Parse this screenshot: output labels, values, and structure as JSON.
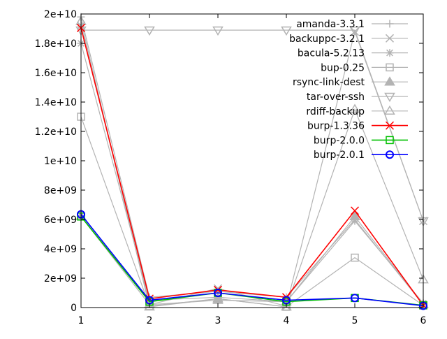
{
  "chart_data": {
    "type": "line",
    "title": "",
    "xlabel": "",
    "ylabel": "",
    "x": [
      1,
      2,
      3,
      4,
      5,
      6
    ],
    "xlim": [
      1,
      6
    ],
    "ylim": [
      0,
      20000000000
    ],
    "xticks": [
      1,
      2,
      3,
      4,
      5,
      6
    ],
    "xtick_labels": [
      "1",
      "2",
      "3",
      "4",
      "5",
      "6"
    ],
    "yticks": [
      0,
      2000000000,
      4000000000,
      6000000000,
      8000000000,
      10000000000,
      12000000000,
      14000000000,
      16000000000,
      18000000000,
      20000000000
    ],
    "ytick_labels": [
      "0",
      "2e+09",
      "4e+09",
      "6e+09",
      "8e+09",
      "1e+10",
      "1.2e+10",
      "1.4e+10",
      "1.6e+10",
      "1.8e+10",
      "2e+10"
    ],
    "grid": false,
    "legend_position": "top-right",
    "series": [
      {
        "name": "amanda-3.3.1",
        "marker": "plus",
        "color": "#b3b3b3",
        "values": [
          19800000000,
          700000000,
          1100000000,
          700000000,
          6000000000,
          200000000
        ]
      },
      {
        "name": "backuppc-3.2.1",
        "marker": "cross",
        "color": "#b3b3b3",
        "values": [
          19200000000,
          200000000,
          1300000000,
          100000000,
          18800000000,
          5900000000
        ]
      },
      {
        "name": "bacula-5.2.13",
        "marker": "asterisk",
        "color": "#b3b3b3",
        "values": [
          18000000000,
          500000000,
          700000000,
          400000000,
          5900000000,
          300000000
        ]
      },
      {
        "name": "bup-0.25",
        "marker": "square",
        "color": "#b3b3b3",
        "values": [
          13000000000,
          100000000,
          600000000,
          50000000,
          3400000000,
          150000000
        ]
      },
      {
        "name": "rsync-link-dest",
        "marker": "triangle-filled",
        "color": "#b3b3b3",
        "values": [
          6200000000,
          200000000,
          500000000,
          400000000,
          6200000000,
          200000000
        ]
      },
      {
        "name": "tar-over-ssh",
        "marker": "triangle-down",
        "color": "#b3b3b3",
        "values": [
          18900000000,
          18900000000,
          18900000000,
          18900000000,
          18900000000,
          5900000000
        ]
      },
      {
        "name": "rdiff-backup",
        "marker": "triangle",
        "color": "#b3b3b3",
        "values": [
          19500000000,
          50000000,
          600000000,
          50000000,
          13500000000,
          1900000000
        ]
      },
      {
        "name": "burp-1.3.36",
        "marker": "cross",
        "color": "#ff0000",
        "values": [
          19050000000,
          600000000,
          1200000000,
          700000000,
          6600000000,
          150000000
        ]
      },
      {
        "name": "burp-2.0.0",
        "marker": "square",
        "color": "#00c000",
        "values": [
          6200000000,
          400000000,
          1000000000,
          400000000,
          650000000,
          150000000
        ]
      },
      {
        "name": "burp-2.0.1",
        "marker": "circle",
        "color": "#0000ff",
        "values": [
          6350000000,
          500000000,
          1000000000,
          500000000,
          650000000,
          120000000
        ]
      }
    ]
  }
}
